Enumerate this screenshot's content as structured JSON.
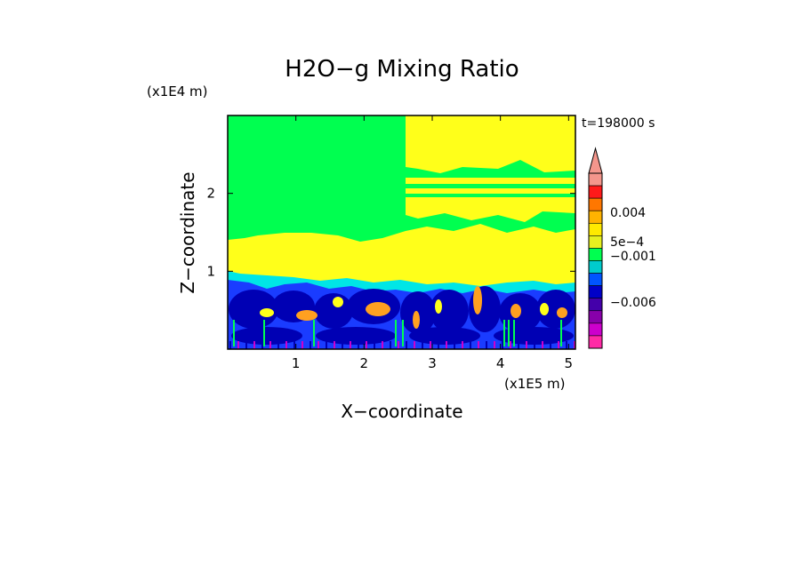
{
  "chart_data": {
    "type": "heatmap",
    "title": "H2O−g Mixing Ratio",
    "time_label": "t=198000 s",
    "xlabel": "X−coordinate",
    "ylabel": "Z−coordinate",
    "x_scale_label": "(x1E5 m)",
    "y_scale_label": "(x1E4 m)",
    "x_ticks": [
      "1",
      "2",
      "3",
      "4",
      "5"
    ],
    "y_ticks": [
      "1",
      "2"
    ],
    "x_range": [
      0,
      5.1
    ],
    "y_range": [
      0,
      3
    ],
    "colorbar": {
      "labels": [
        "0.004",
        "5e−4",
        "−0.001",
        "−0.006"
      ],
      "colors_top_to_bottom": [
        "#f4968c",
        "#ff1a1a",
        "#ff7700",
        "#ffb300",
        "#ffea00",
        "#e6f020",
        "#00ff50",
        "#00cccc",
        "#0055ff",
        "#0000c8",
        "#4400aa",
        "#8800aa",
        "#cc00cc",
        "#ff2aa6"
      ]
    },
    "field_colors": {
      "background": "#00ff50",
      "moist_layer": "#ffff1a",
      "cyan": "#00e6e6",
      "blue": "#1a3cff",
      "dark_blue": "#0000b4",
      "orange": "#ffa020",
      "magenta": "#cc00cc"
    }
  }
}
